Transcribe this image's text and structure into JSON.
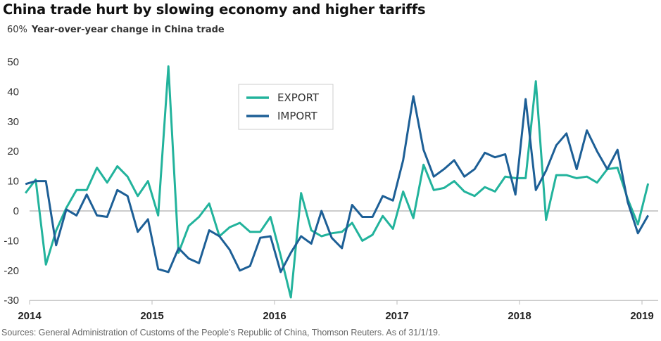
{
  "title": "China trade hurt by slowing economy and higher tariffs",
  "subtitle_unit": "60%",
  "subtitle": "Year-over-year change in China trade",
  "source": "Sources: General Administration of Customs of the People’s Republic of China, Thomson Reuters. As of 31/1/19.",
  "chart_data": {
    "type": "line",
    "title": "China trade hurt by slowing economy and higher tariffs",
    "ylabel": "Year-over-year change in China trade",
    "yunit": "%",
    "ylim": [
      -30,
      60
    ],
    "yticks": [
      -30,
      -20,
      -10,
      0,
      10,
      20,
      30,
      40,
      50
    ],
    "xticks": [
      "2014",
      "2015",
      "2016",
      "2017",
      "2018",
      "2019"
    ],
    "grid": false,
    "legend_position": "top-center",
    "x_start": "2013-12",
    "x_end": "2019-01",
    "x_step": "month",
    "series": [
      {
        "name": "EXPORT",
        "color": "#22b39c",
        "values": [
          6,
          10.5,
          -18,
          -6.6,
          1,
          7,
          7,
          14.5,
          9.5,
          15,
          11.5,
          5,
          10,
          -1.5,
          48.5,
          -14,
          -5,
          -2,
          2.5,
          -8.5,
          -5.5,
          -4,
          -7,
          -7,
          -2,
          -15,
          -29,
          6,
          -6.5,
          -8.5,
          -7.5,
          -7,
          -4,
          -10,
          -8,
          -1.7,
          -6,
          6.5,
          -2.4,
          15.5,
          7,
          7.7,
          10,
          6.5,
          5,
          8,
          6.5,
          11.5,
          11,
          11,
          43.5,
          -3,
          12,
          12,
          11,
          11.5,
          9.5,
          14,
          14.5,
          4,
          -4.5,
          9.2
        ]
      },
      {
        "name": "IMPORT",
        "color": "#1d5f96",
        "values": [
          9,
          10,
          10,
          -11.5,
          0.5,
          -1.5,
          5.5,
          -1.5,
          -2,
          7,
          5,
          -7,
          -2.8,
          -19.5,
          -20.5,
          -12.5,
          -16,
          -17.5,
          -6.5,
          -8.5,
          -13,
          -20,
          -18.5,
          -9,
          -8.5,
          -20.5,
          -14,
          -8.5,
          -11,
          0,
          -9,
          -12.5,
          2,
          -2,
          -2,
          5,
          3.5,
          17,
          38.5,
          20.5,
          11.5,
          14,
          17,
          11.5,
          14,
          19.5,
          18,
          19,
          5.5,
          37.5,
          7,
          13.5,
          22,
          26,
          14,
          27,
          20,
          14,
          20.5,
          3,
          -7.5,
          -1.5
        ]
      }
    ]
  }
}
